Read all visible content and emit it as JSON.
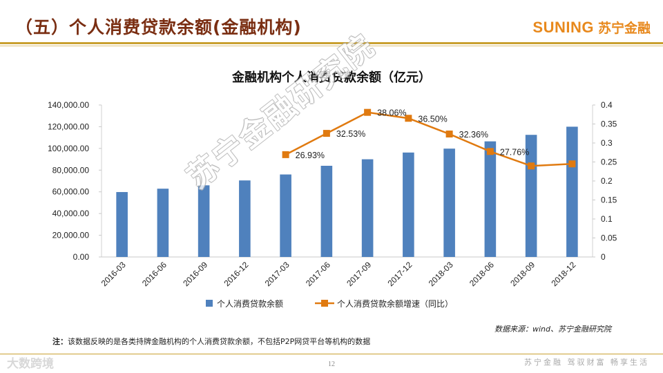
{
  "header": {
    "title": "（五）个人消费贷款余额(金融机构)"
  },
  "brand": {
    "name_en": "SUNING",
    "name_cn": "苏宁金融",
    "color": "#e8891d"
  },
  "title_color": "#7a2e12",
  "chart_data": {
    "type": "bar+line",
    "title": "金融机构个人消费贷款余额（亿元）",
    "categories": [
      "2016-03",
      "2016-06",
      "2016-09",
      "2016-12",
      "2017-03",
      "2017-06",
      "2017-09",
      "2017-12",
      "2018-03",
      "2018-06",
      "2018-09",
      "2018-12"
    ],
    "series": [
      {
        "name": "个人消费贷款余额",
        "type": "bar",
        "axis": "left",
        "color": "#4f81bd",
        "values": [
          59800,
          62900,
          66000,
          70500,
          76000,
          84000,
          90000,
          96200,
          99800,
          106500,
          112500,
          120000
        ]
      },
      {
        "name": "个人消费贷款余额增速（同比）",
        "type": "line",
        "axis": "right",
        "color": "#e07a10",
        "values": [
          null,
          null,
          null,
          null,
          0.2693,
          0.3253,
          0.3806,
          0.365,
          0.3236,
          0.2776,
          0.2395,
          0.245
        ],
        "labels": [
          null,
          null,
          null,
          null,
          "26.93%",
          "32.53%",
          "38.06%",
          "36.50%",
          "32.36%",
          "27.76%",
          null,
          null
        ]
      }
    ],
    "y_left": {
      "min": 0,
      "max": 140000,
      "step": 20000,
      "tick_labels": [
        "0.00",
        "20,000.00",
        "40,000.00",
        "60,000.00",
        "80,000.00",
        "100,000.00",
        "120,000.00",
        "140,000.00"
      ]
    },
    "y_right": {
      "min": 0,
      "max": 0.4,
      "step": 0.05,
      "tick_labels": [
        "0",
        "0.05",
        "0.1",
        "0.15",
        "0.2",
        "0.25",
        "0.3",
        "0.35",
        "0.4"
      ]
    },
    "grid": false,
    "legend_position": "bottom"
  },
  "source": "数据来源：wind、苏宁金融研究院",
  "note": {
    "label": "注：",
    "text": "该数据反映的是各类持牌金融机构的个人消费贷款余额，不包括P2P网贷平台等机构的数据"
  },
  "page_number": "12",
  "slogan": "苏宁金融  驾驭财富  畅享生活",
  "watermark": "苏宁金融研究院",
  "corner_logo": "大数跨境"
}
